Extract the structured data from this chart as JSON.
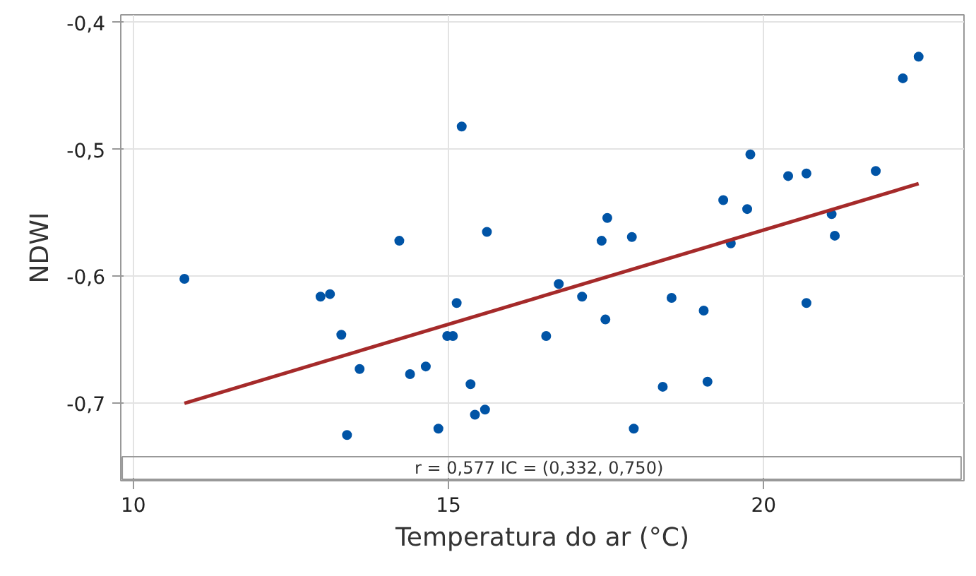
{
  "chart_data": {
    "type": "scatter",
    "xlabel": "Temperatura do ar (°C)",
    "ylabel": "NDWI",
    "xlim": [
      9.8,
      23.18
    ],
    "ylim": [
      -0.761,
      -0.394
    ],
    "xticks": [
      10,
      15,
      20
    ],
    "yticks": [
      {
        "value": -0.4,
        "label": "-0,4"
      },
      {
        "value": -0.5,
        "label": "-0,5"
      },
      {
        "value": -0.6,
        "label": "-0,6"
      },
      {
        "value": -0.7,
        "label": "-0,7"
      }
    ],
    "grid": true,
    "annotations": [
      "r = 0,577  IC = (0,332, 0,750)"
    ],
    "series": [
      {
        "marker": "circle",
        "color": "#0054a6",
        "x": [
          10.81,
          12.97,
          13.12,
          13.3,
          13.59,
          13.39,
          14.22,
          14.39,
          14.64,
          14.84,
          14.98,
          15.07,
          15.13,
          15.21,
          15.35,
          15.42,
          15.58,
          15.61,
          16.55,
          16.75,
          17.12,
          17.43,
          17.52,
          17.49,
          17.91,
          17.94,
          18.4,
          18.54,
          19.05,
          19.11,
          19.36,
          19.48,
          19.74,
          19.79,
          20.39,
          20.68,
          20.68,
          21.08,
          21.13,
          21.78,
          22.21,
          22.46
        ],
        "values": [
          -0.602,
          -0.616,
          -0.614,
          -0.646,
          -0.673,
          -0.725,
          -0.572,
          -0.677,
          -0.671,
          -0.72,
          -0.647,
          -0.647,
          -0.621,
          -0.482,
          -0.685,
          -0.709,
          -0.705,
          -0.565,
          -0.647,
          -0.606,
          -0.616,
          -0.572,
          -0.554,
          -0.634,
          -0.569,
          -0.72,
          -0.687,
          -0.617,
          -0.627,
          -0.683,
          -0.54,
          -0.574,
          -0.547,
          -0.504,
          -0.521,
          -0.519,
          -0.621,
          -0.551,
          -0.568,
          -0.517,
          -0.444,
          -0.427
        ]
      },
      {
        "type": "line",
        "color": "#a52a2a",
        "x": [
          10.81,
          22.46
        ],
        "values": [
          -0.7,
          -0.527
        ],
        "line_style": "solid"
      }
    ]
  }
}
